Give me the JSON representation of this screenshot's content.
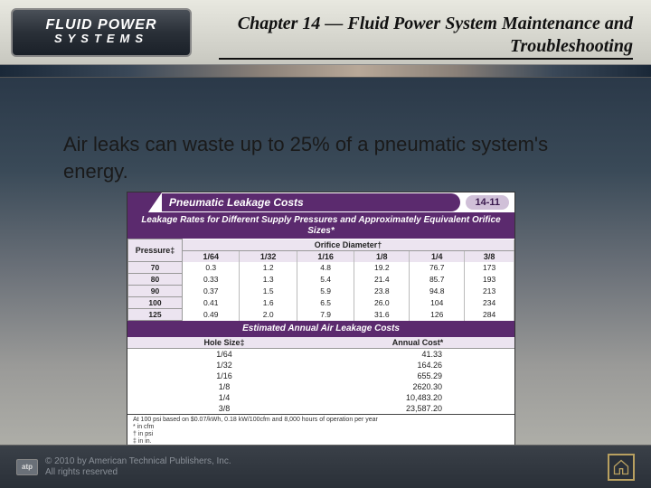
{
  "logo": {
    "line1": "FLUID POWER",
    "line2": "SYSTEMS"
  },
  "chapter_title": "Chapter 14 — Fluid Power System Maintenance and Troubleshooting",
  "body_text": "Air leaks can waste up to 25% of a pneumatic system's energy.",
  "figure": {
    "title": "Pneumatic Leakage Costs",
    "number": "14-11",
    "section1_heading": "Leakage Rates for Different Supply Pressures and Approximately Equivalent Orifice Sizes*",
    "orifice_header": "Orifice Diameter†",
    "pressure_header": "Pressure‡",
    "orifice_cols": [
      "1/64",
      "1/32",
      "1/16",
      "1/8",
      "1/4",
      "3/8"
    ],
    "leak_rows": [
      {
        "p": "70",
        "v": [
          "0.3",
          "1.2",
          "4.8",
          "19.2",
          "76.7",
          "173"
        ]
      },
      {
        "p": "80",
        "v": [
          "0.33",
          "1.3",
          "5.4",
          "21.4",
          "85.7",
          "193"
        ]
      },
      {
        "p": "90",
        "v": [
          "0.37",
          "1.5",
          "5.9",
          "23.8",
          "94.8",
          "213"
        ]
      },
      {
        "p": "100",
        "v": [
          "0.41",
          "1.6",
          "6.5",
          "26.0",
          "104",
          "234"
        ]
      },
      {
        "p": "125",
        "v": [
          "0.49",
          "2.0",
          "7.9",
          "31.6",
          "126",
          "284"
        ]
      }
    ],
    "section2_heading": "Estimated Annual Air Leakage Costs",
    "cost_headers": [
      "Hole Size‡",
      "Annual Cost*"
    ],
    "cost_rows": [
      {
        "size": "1/64",
        "cost": "41.33"
      },
      {
        "size": "1/32",
        "cost": "164.26"
      },
      {
        "size": "1/16",
        "cost": "655.29"
      },
      {
        "size": "1/8",
        "cost": "2620.30"
      },
      {
        "size": "1/4",
        "cost": "10,483.20"
      },
      {
        "size": "3/8",
        "cost": "23,587.20"
      }
    ],
    "footnote_main": "At 100 psi based on $0.07/kWh, 0.18 kW/100cfm and 8,000 hours of operation per year",
    "footnote_lines": [
      "* in cfm",
      "† in psi",
      "‡ in in."
    ]
  },
  "copyright": {
    "badge": "atp",
    "line1": "© 2010 by American Technical Publishers, Inc.",
    "line2": "All rights reserved"
  },
  "colors": {
    "purple": "#5b2a6e",
    "purple_light": "#ece4f0",
    "gold": "#b8a060"
  }
}
